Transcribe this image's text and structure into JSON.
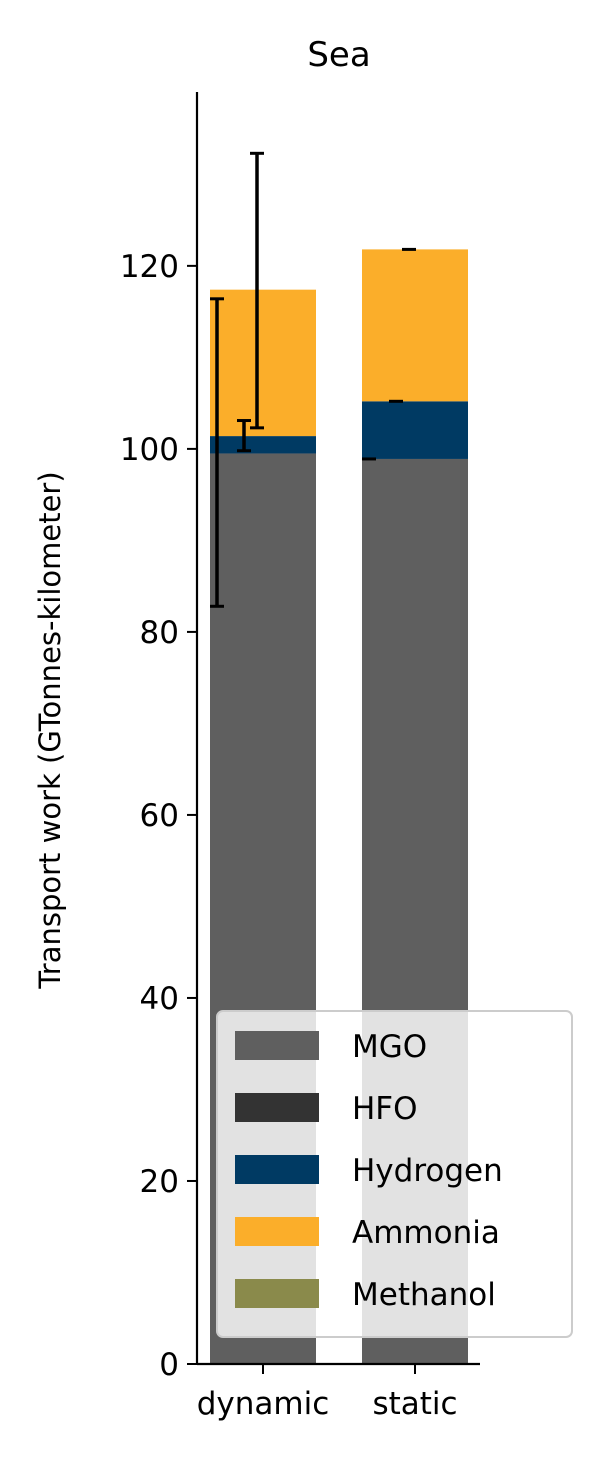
{
  "chart_data": {
    "type": "bar",
    "stacked": true,
    "title": "Sea",
    "xlabel": "",
    "ylabel": "Transport work (GTonnes-kilometer)",
    "categories": [
      "dynamic",
      "static"
    ],
    "ylim": [
      0,
      139
    ],
    "yticks": [
      0,
      20,
      40,
      60,
      80,
      100,
      120
    ],
    "grid": false,
    "legend_position": "bottom-right",
    "series": [
      {
        "name": "MGO",
        "color": "#5f5f5f",
        "values": [
          99.5,
          98.9
        ]
      },
      {
        "name": "HFO",
        "color": "#333333",
        "values": [
          0,
          0
        ]
      },
      {
        "name": "Hydrogen",
        "color": "#003a63",
        "values": [
          1.9,
          6.3
        ]
      },
      {
        "name": "Ammonia",
        "color": "#fbae2a",
        "values": [
          16.0,
          16.6
        ]
      },
      {
        "name": "Methanol",
        "color": "#8a8a4b",
        "values": [
          0,
          0
        ]
      }
    ],
    "error_bars": [
      {
        "category": "dynamic",
        "series": "MGO",
        "center": 99.5,
        "lower": 82.8,
        "upper": 116.4
      },
      {
        "category": "dynamic",
        "series": "Hydrogen",
        "center": 101.4,
        "lower": 99.8,
        "upper": 103.1
      },
      {
        "category": "dynamic",
        "series": "Ammonia",
        "center": 117.4,
        "lower": 102.3,
        "upper": 132.3
      },
      {
        "category": "static",
        "series": "MGO",
        "center": 98.9,
        "lower": 98.9,
        "upper": 98.9
      },
      {
        "category": "static",
        "series": "Hydrogen",
        "center": 105.2,
        "lower": 105.2,
        "upper": 105.2
      },
      {
        "category": "static",
        "series": "Ammonia",
        "center": 121.8,
        "lower": 121.8,
        "upper": 121.8
      }
    ]
  }
}
